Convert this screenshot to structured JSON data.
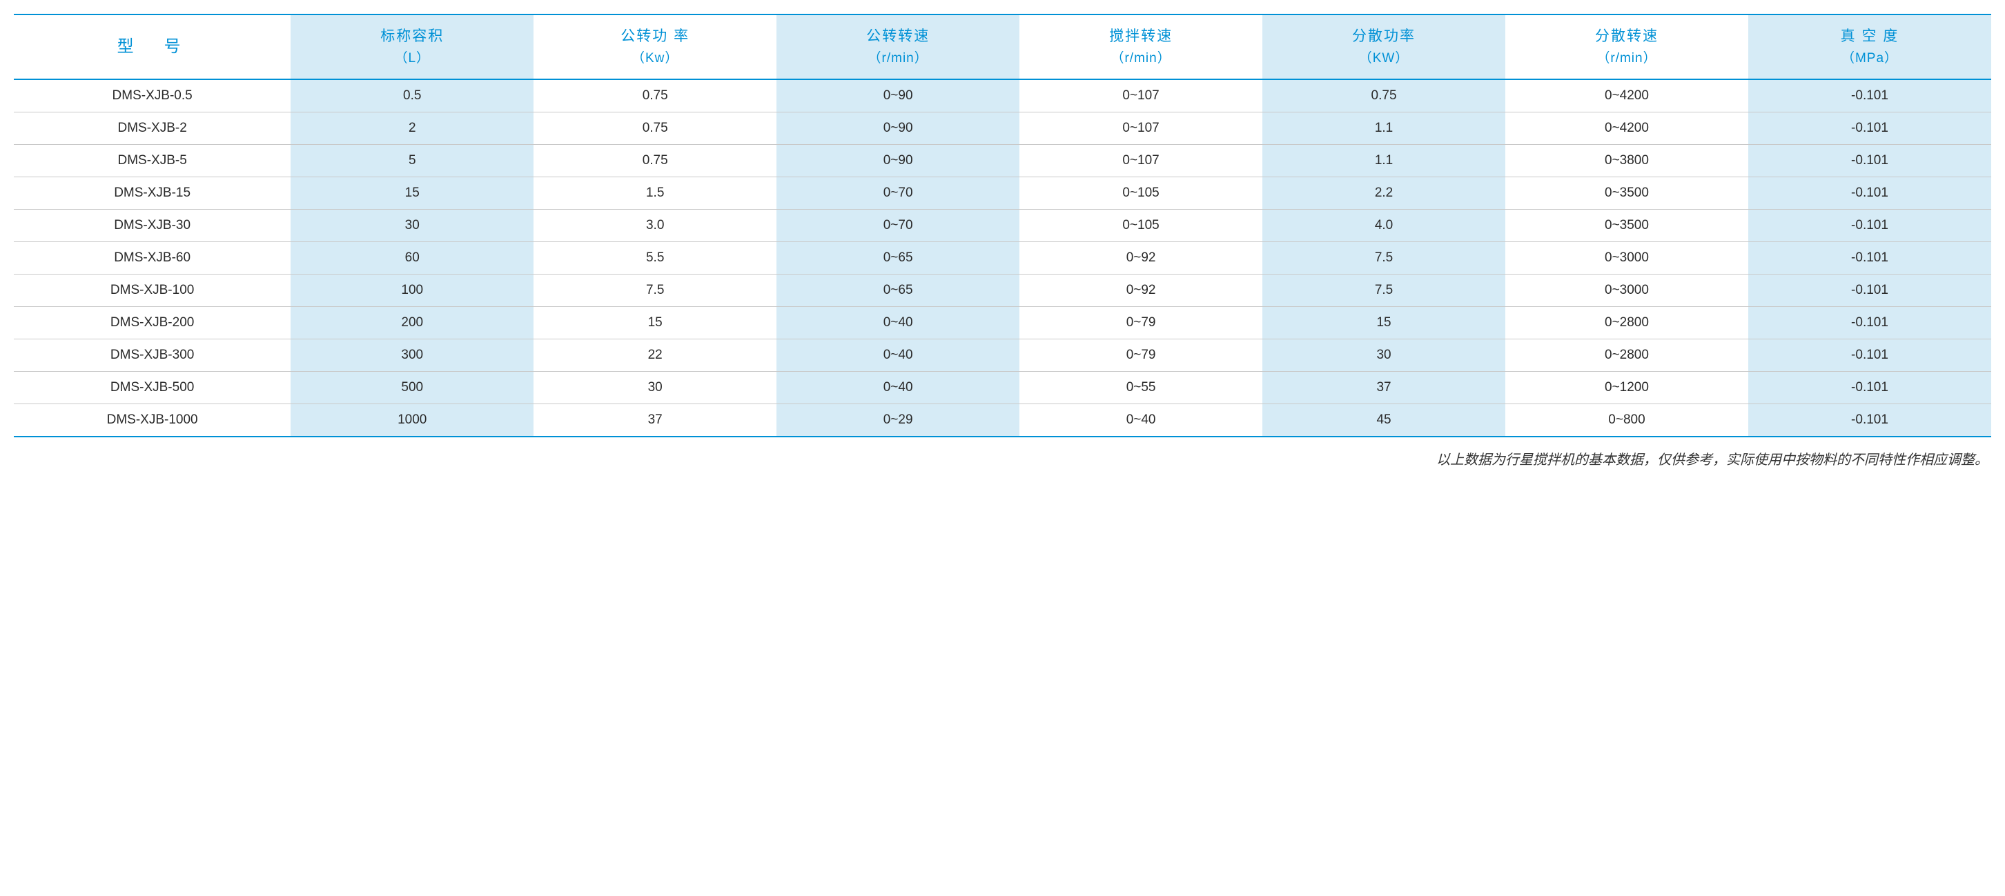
{
  "colors": {
    "accent": "#0091d6",
    "altColBg": "#d6ebf6",
    "rowBorder": "#c9c9c9",
    "text": "#2a2a2a",
    "footnote": "#333333",
    "background": "#ffffff"
  },
  "table": {
    "columns": [
      {
        "label": "型　号",
        "unit": "",
        "alt": false,
        "isModel": true
      },
      {
        "label": "标称容积",
        "unit": "（L）",
        "alt": true
      },
      {
        "label": "公转功 率",
        "unit": "（Kw）",
        "alt": false
      },
      {
        "label": "公转转速",
        "unit": "（r/min）",
        "alt": true
      },
      {
        "label": "搅拌转速",
        "unit": "（r/min）",
        "alt": false
      },
      {
        "label": "分散功率",
        "unit": "（KW）",
        "alt": true
      },
      {
        "label": "分散转速",
        "unit": "（r/min）",
        "alt": false
      },
      {
        "label": "真 空 度",
        "unit": "（MPa）",
        "alt": true
      }
    ],
    "rows": [
      [
        "DMS-XJB-0.5",
        "0.5",
        "0.75",
        "0~90",
        "0~107",
        "0.75",
        "0~4200",
        "-0.101"
      ],
      [
        "DMS-XJB-2",
        "2",
        "0.75",
        "0~90",
        "0~107",
        "1.1",
        "0~4200",
        "-0.101"
      ],
      [
        "DMS-XJB-5",
        "5",
        "0.75",
        "0~90",
        "0~107",
        "1.1",
        "0~3800",
        "-0.101"
      ],
      [
        "DMS-XJB-15",
        "15",
        "1.5",
        "0~70",
        "0~105",
        "2.2",
        "0~3500",
        "-0.101"
      ],
      [
        "DMS-XJB-30",
        "30",
        "3.0",
        "0~70",
        "0~105",
        "4.0",
        "0~3500",
        "-0.101"
      ],
      [
        "DMS-XJB-60",
        "60",
        "5.5",
        "0~65",
        "0~92",
        "7.5",
        "0~3000",
        "-0.101"
      ],
      [
        "DMS-XJB-100",
        "100",
        "7.5",
        "0~65",
        "0~92",
        "7.5",
        "0~3000",
        "-0.101"
      ],
      [
        "DMS-XJB-200",
        "200",
        "15",
        "0~40",
        "0~79",
        "15",
        "0~2800",
        "-0.101"
      ],
      [
        "DMS-XJB-300",
        "300",
        "22",
        "0~40",
        "0~79",
        "30",
        "0~2800",
        "-0.101"
      ],
      [
        "DMS-XJB-500",
        "500",
        "30",
        "0~40",
        "0~55",
        "37",
        "0~1200",
        "-0.101"
      ],
      [
        "DMS-XJB-1000",
        "1000",
        "37",
        "0~29",
        "0~40",
        "45",
        "0~800",
        "-0.101"
      ]
    ]
  },
  "footnote": "以上数据为行星搅拌机的基本数据，仅供参考，实际使用中按物料的不同特性作相应调整。"
}
